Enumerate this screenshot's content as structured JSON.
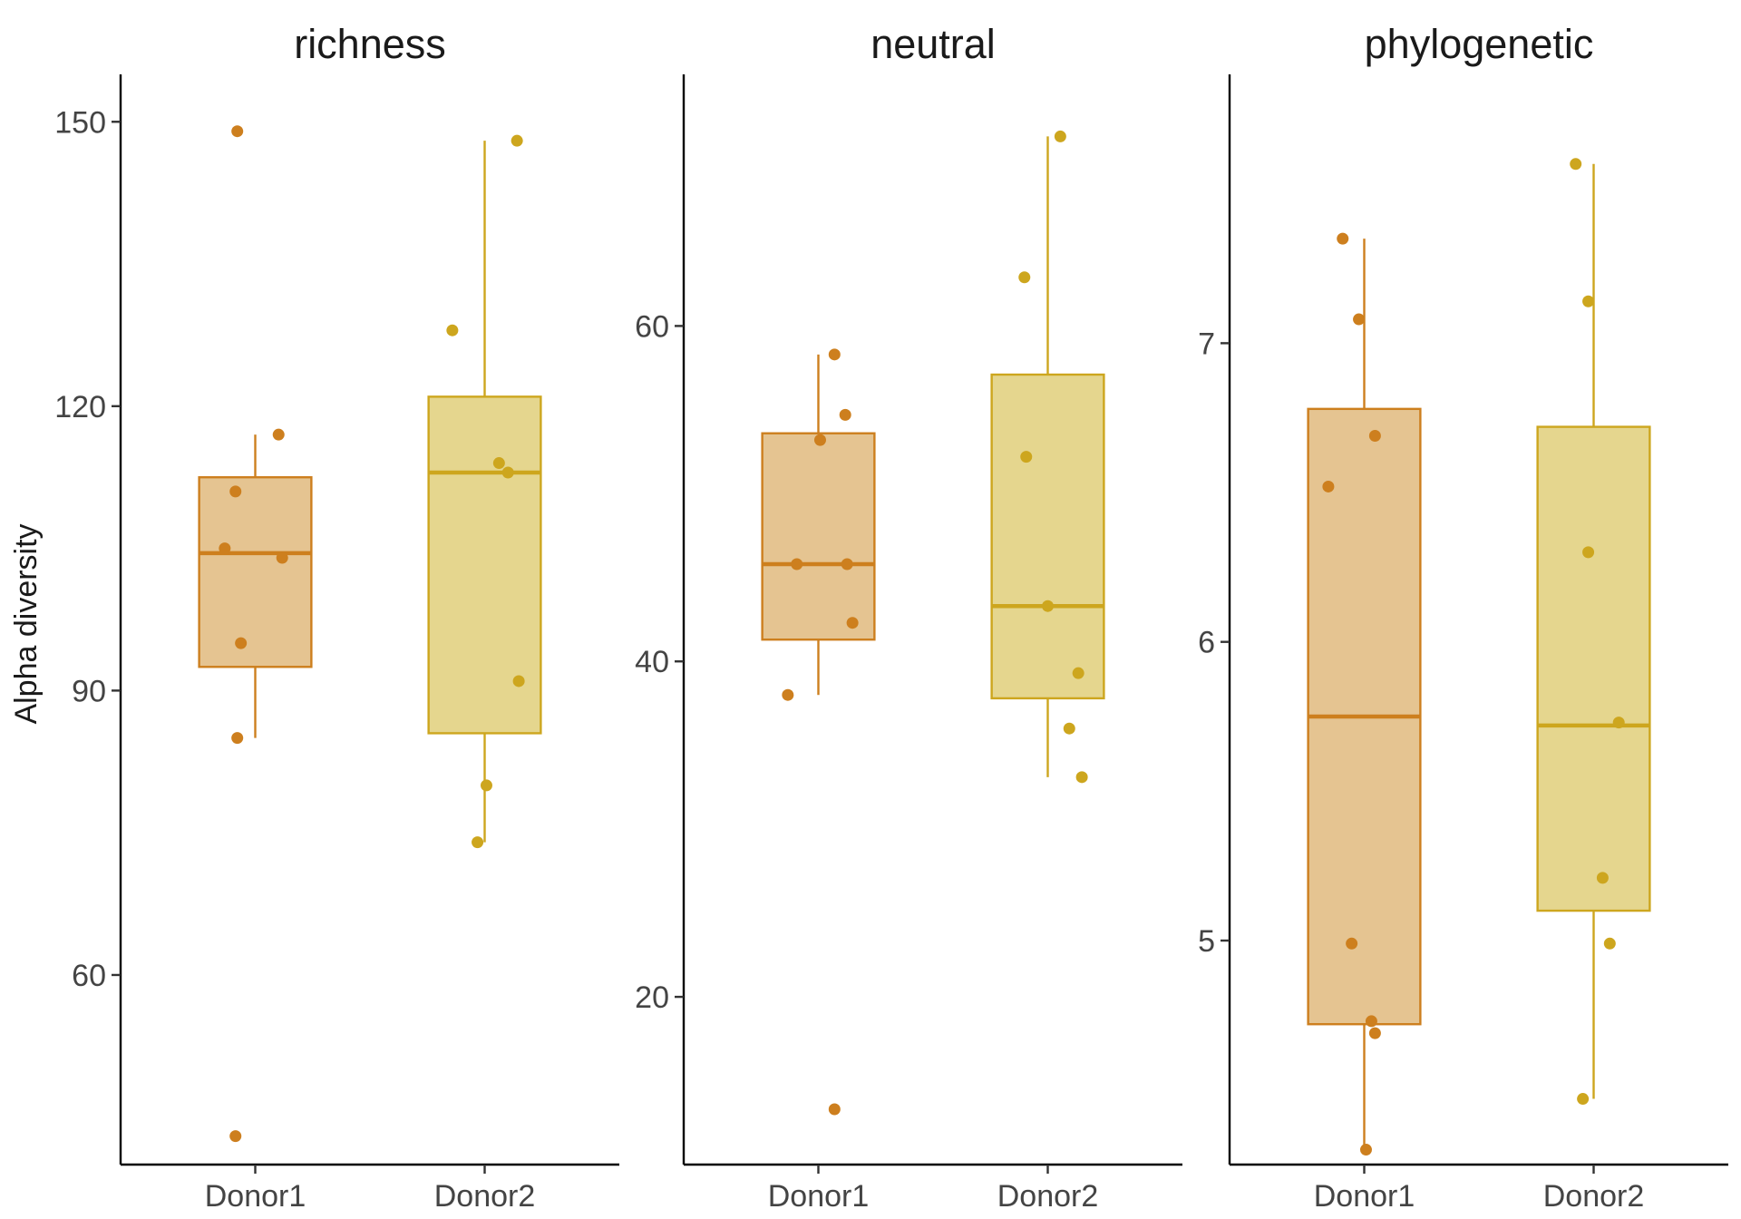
{
  "chart_data": {
    "type": "box",
    "ylabel": "Alpha diversity",
    "categories": [
      "Donor1",
      "Donor2"
    ],
    "colors": {
      "Donor1": "#CD7F1E",
      "Donor2": "#CDA61E"
    },
    "fill_colors": {
      "Donor1": "#E5C491",
      "Donor2": "#E5D68E"
    },
    "grid": false,
    "legend": "none",
    "panels": [
      {
        "title": "richness",
        "ylim": [
          40,
          155
        ],
        "yticks": [
          60,
          90,
          120,
          150
        ],
        "series": [
          {
            "name": "Donor1",
            "box": {
              "whisker_low": 85,
              "q1": 92.5,
              "median": 104.5,
              "q3": 112.5,
              "whisker_high": 117
            },
            "points": [
              {
                "x_jitter": -0.1,
                "y": 149
              },
              {
                "x_jitter": 0.13,
                "y": 117
              },
              {
                "x_jitter": -0.11,
                "y": 111
              },
              {
                "x_jitter": -0.17,
                "y": 105
              },
              {
                "x_jitter": 0.15,
                "y": 104
              },
              {
                "x_jitter": -0.08,
                "y": 95
              },
              {
                "x_jitter": -0.1,
                "y": 85
              },
              {
                "x_jitter": -0.11,
                "y": 43
              }
            ]
          },
          {
            "name": "Donor2",
            "box": {
              "whisker_low": 74,
              "q1": 85.5,
              "median": 113,
              "q3": 121,
              "whisker_high": 148
            },
            "points": [
              {
                "x_jitter": 0.18,
                "y": 148
              },
              {
                "x_jitter": -0.18,
                "y": 128
              },
              {
                "x_jitter": 0.08,
                "y": 114
              },
              {
                "x_jitter": 0.13,
                "y": 113
              },
              {
                "x_jitter": 0.19,
                "y": 91
              },
              {
                "x_jitter": 0.01,
                "y": 80
              },
              {
                "x_jitter": -0.04,
                "y": 74
              }
            ]
          }
        ]
      },
      {
        "title": "neutral",
        "ylim": [
          10,
          75
        ],
        "yticks": [
          20,
          40,
          60
        ],
        "series": [
          {
            "name": "Donor1",
            "box": {
              "whisker_low": 38,
              "q1": 41.3,
              "median": 45.8,
              "q3": 53.6,
              "whisker_high": 58.3
            },
            "points": [
              {
                "x_jitter": 0.09,
                "y": 58.3
              },
              {
                "x_jitter": 0.15,
                "y": 54.7
              },
              {
                "x_jitter": 0.01,
                "y": 53.2
              },
              {
                "x_jitter": -0.12,
                "y": 45.8
              },
              {
                "x_jitter": 0.16,
                "y": 45.8
              },
              {
                "x_jitter": 0.19,
                "y": 42.3
              },
              {
                "x_jitter": -0.17,
                "y": 38
              },
              {
                "x_jitter": 0.09,
                "y": 13.3
              }
            ]
          },
          {
            "name": "Donor2",
            "box": {
              "whisker_low": 33.1,
              "q1": 37.8,
              "median": 43.3,
              "q3": 57.1,
              "whisker_high": 71.3
            },
            "points": [
              {
                "x_jitter": 0.07,
                "y": 71.3
              },
              {
                "x_jitter": -0.13,
                "y": 62.9
              },
              {
                "x_jitter": -0.12,
                "y": 52.2
              },
              {
                "x_jitter": 0.0,
                "y": 43.3
              },
              {
                "x_jitter": 0.17,
                "y": 39.3
              },
              {
                "x_jitter": 0.12,
                "y": 36
              },
              {
                "x_jitter": 0.19,
                "y": 33.1
              }
            ]
          }
        ]
      },
      {
        "title": "phylogenetic",
        "ylim": [
          4.25,
          7.9
        ],
        "yticks": [
          5,
          6,
          7
        ],
        "series": [
          {
            "name": "Donor1",
            "box": {
              "whisker_low": 4.3,
              "q1": 4.72,
              "median": 5.75,
              "q3": 6.78,
              "whisker_high": 7.35
            },
            "points": [
              {
                "x_jitter": -0.12,
                "y": 7.35
              },
              {
                "x_jitter": -0.03,
                "y": 7.08
              },
              {
                "x_jitter": 0.06,
                "y": 6.69
              },
              {
                "x_jitter": -0.2,
                "y": 6.52
              },
              {
                "x_jitter": -0.07,
                "y": 4.99
              },
              {
                "x_jitter": 0.04,
                "y": 4.73
              },
              {
                "x_jitter": 0.06,
                "y": 4.69
              },
              {
                "x_jitter": 0.01,
                "y": 4.3
              }
            ]
          },
          {
            "name": "Donor2",
            "box": {
              "whisker_low": 4.47,
              "q1": 5.1,
              "median": 5.72,
              "q3": 6.72,
              "whisker_high": 7.6
            },
            "points": [
              {
                "x_jitter": -0.1,
                "y": 7.6
              },
              {
                "x_jitter": -0.03,
                "y": 7.14
              },
              {
                "x_jitter": -0.03,
                "y": 6.3
              },
              {
                "x_jitter": 0.14,
                "y": 5.73
              },
              {
                "x_jitter": 0.05,
                "y": 5.21
              },
              {
                "x_jitter": 0.09,
                "y": 4.99
              },
              {
                "x_jitter": -0.06,
                "y": 4.47
              }
            ]
          }
        ]
      }
    ]
  }
}
